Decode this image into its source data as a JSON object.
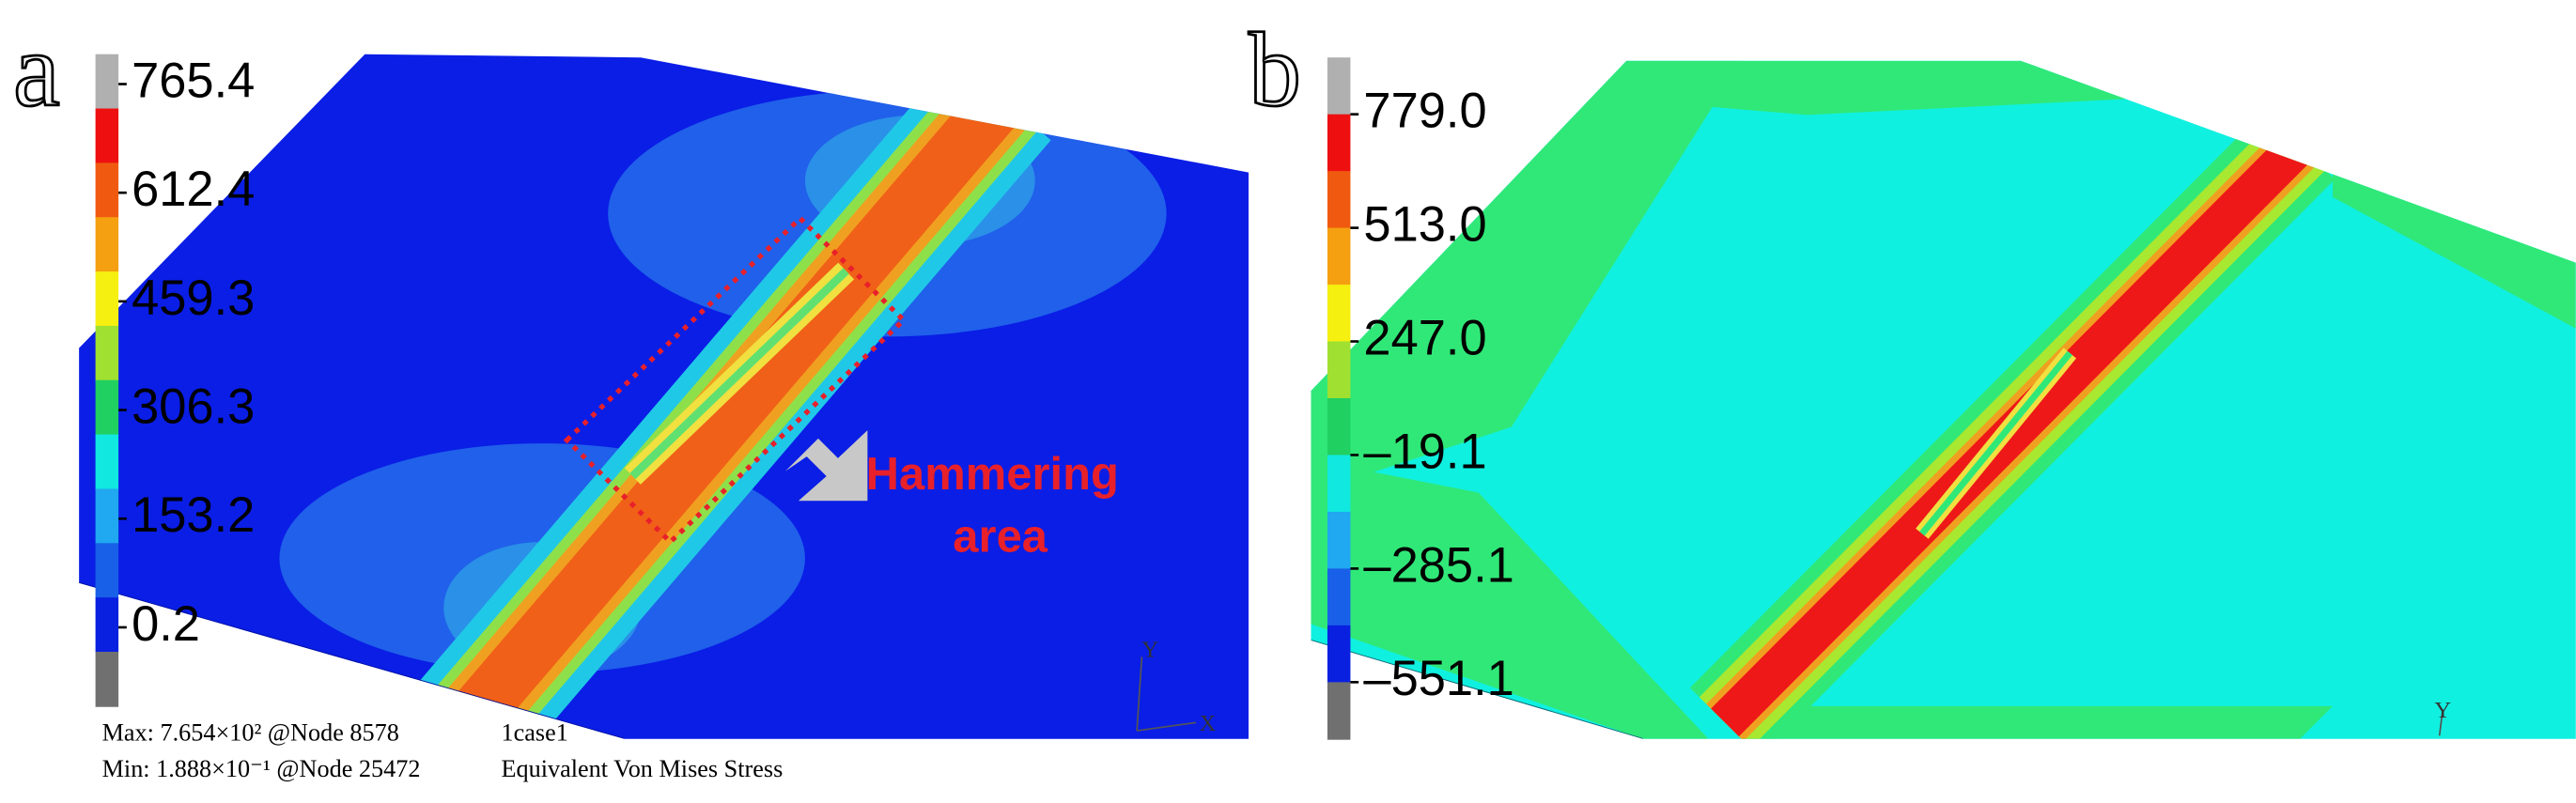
{
  "panels": [
    {
      "label": "a",
      "colorbar": {
        "ticks": [
          "765.4",
          "612.4",
          "459.3",
          "306.3",
          "153.2",
          "0.2"
        ]
      },
      "annotation": [
        "Hammering",
        "area"
      ],
      "info": {
        "max": "Max: 7.654×10² @Node 8578",
        "case": "1case1",
        "min": "Min: 1.888×10⁻¹ @Node 25472",
        "result": "Equivalent Von Mises Stress"
      },
      "axes": [
        "Y",
        "X"
      ]
    },
    {
      "label": "b",
      "colorbar": {
        "ticks": [
          "779.0",
          "513.0",
          "247.0",
          "–19.1",
          "–285.1",
          "–551.1"
        ]
      },
      "axes": [
        "Y"
      ]
    }
  ]
}
